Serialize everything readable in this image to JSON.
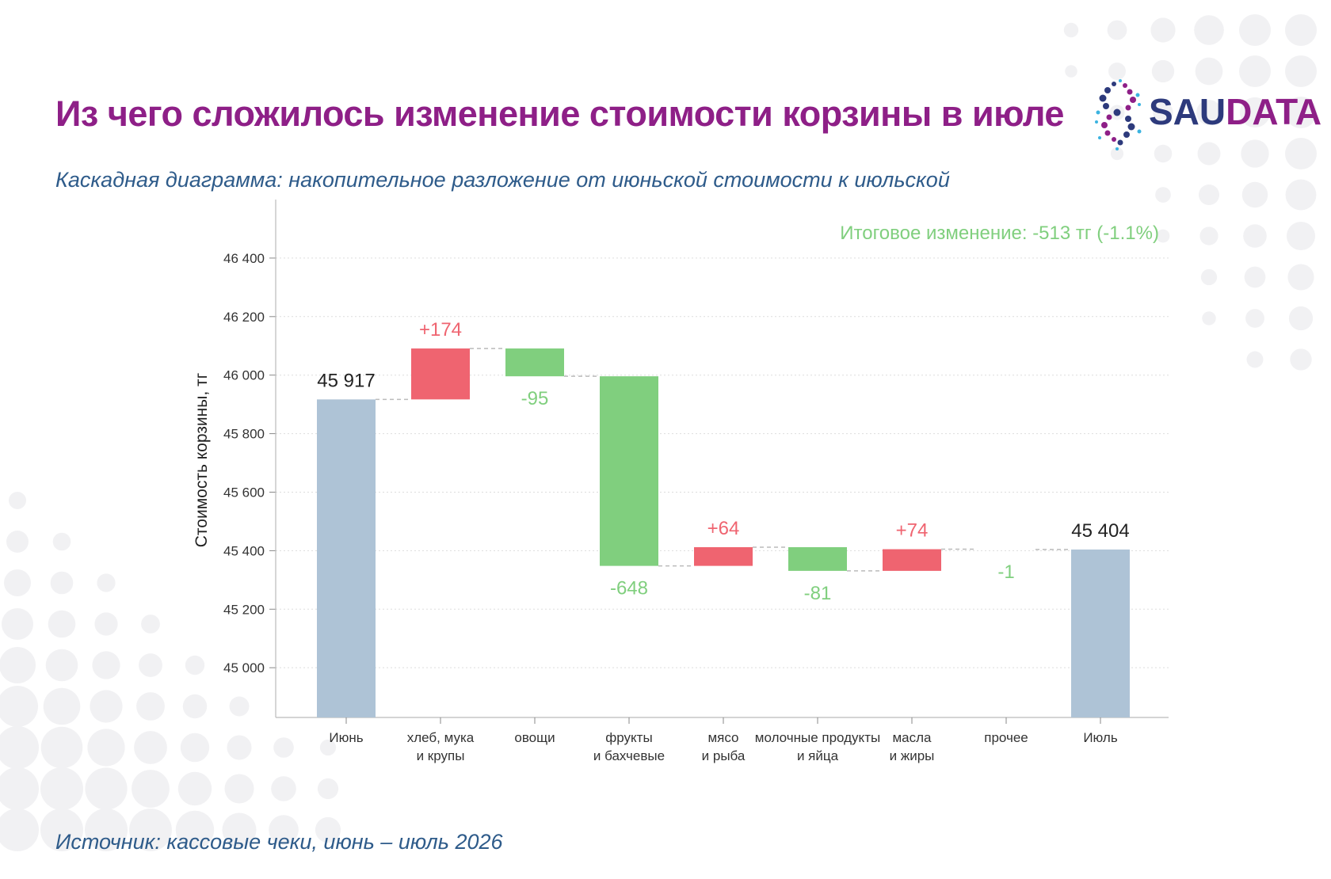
{
  "header": {
    "title": "Из чего сложилось изменение стоимости корзины в июле",
    "subtitle": "Каскадная диаграмма: накопительное разложение от июньской стоимости к июльской"
  },
  "footer": {
    "source": "Источник: кассовые чеки, июнь – июль 2026"
  },
  "logo": {
    "part1": "SAU",
    "part2": "DATA"
  },
  "colors": {
    "total": "#aec3d6",
    "increase": "#ef6470",
    "decrease": "#80cf7e",
    "title": "#8e1f87",
    "subtitle": "#2e5b8a"
  },
  "chart_data": {
    "type": "waterfall",
    "title": "",
    "xlabel": "",
    "ylabel": "Стоимость корзины, тг",
    "ylim": [
      44830,
      46600
    ],
    "yticks": [
      45000,
      45200,
      45400,
      45600,
      45800,
      46000,
      46200,
      46400
    ],
    "ytick_labels": [
      "45 000",
      "45 200",
      "45 400",
      "45 600",
      "45 800",
      "46 000",
      "46 200",
      "46 400"
    ],
    "grid": true,
    "annotation": "Итоговое изменение: -513 тг (-1.1%)",
    "steps": [
      {
        "category": [
          "Июнь"
        ],
        "kind": "total",
        "value": 45917,
        "label": "45 917"
      },
      {
        "category": [
          "хлеб, мука",
          "и крупы"
        ],
        "kind": "delta",
        "value": 174,
        "label": "+174"
      },
      {
        "category": [
          "овощи"
        ],
        "kind": "delta",
        "value": -95,
        "label": "-95"
      },
      {
        "category": [
          "фрукты",
          "и бахчевые"
        ],
        "kind": "delta",
        "value": -648,
        "label": "-648"
      },
      {
        "category": [
          "мясо",
          "и рыба"
        ],
        "kind": "delta",
        "value": 64,
        "label": "+64"
      },
      {
        "category": [
          "молочные продукты",
          "и яйца"
        ],
        "kind": "delta",
        "value": -81,
        "label": "-81"
      },
      {
        "category": [
          "масла",
          "и жиры"
        ],
        "kind": "delta",
        "value": 74,
        "label": "+74"
      },
      {
        "category": [
          "прочее"
        ],
        "kind": "delta",
        "value": -1,
        "label": "-1"
      },
      {
        "category": [
          "Июль"
        ],
        "kind": "total",
        "value": 45404,
        "label": "45 404"
      }
    ]
  }
}
